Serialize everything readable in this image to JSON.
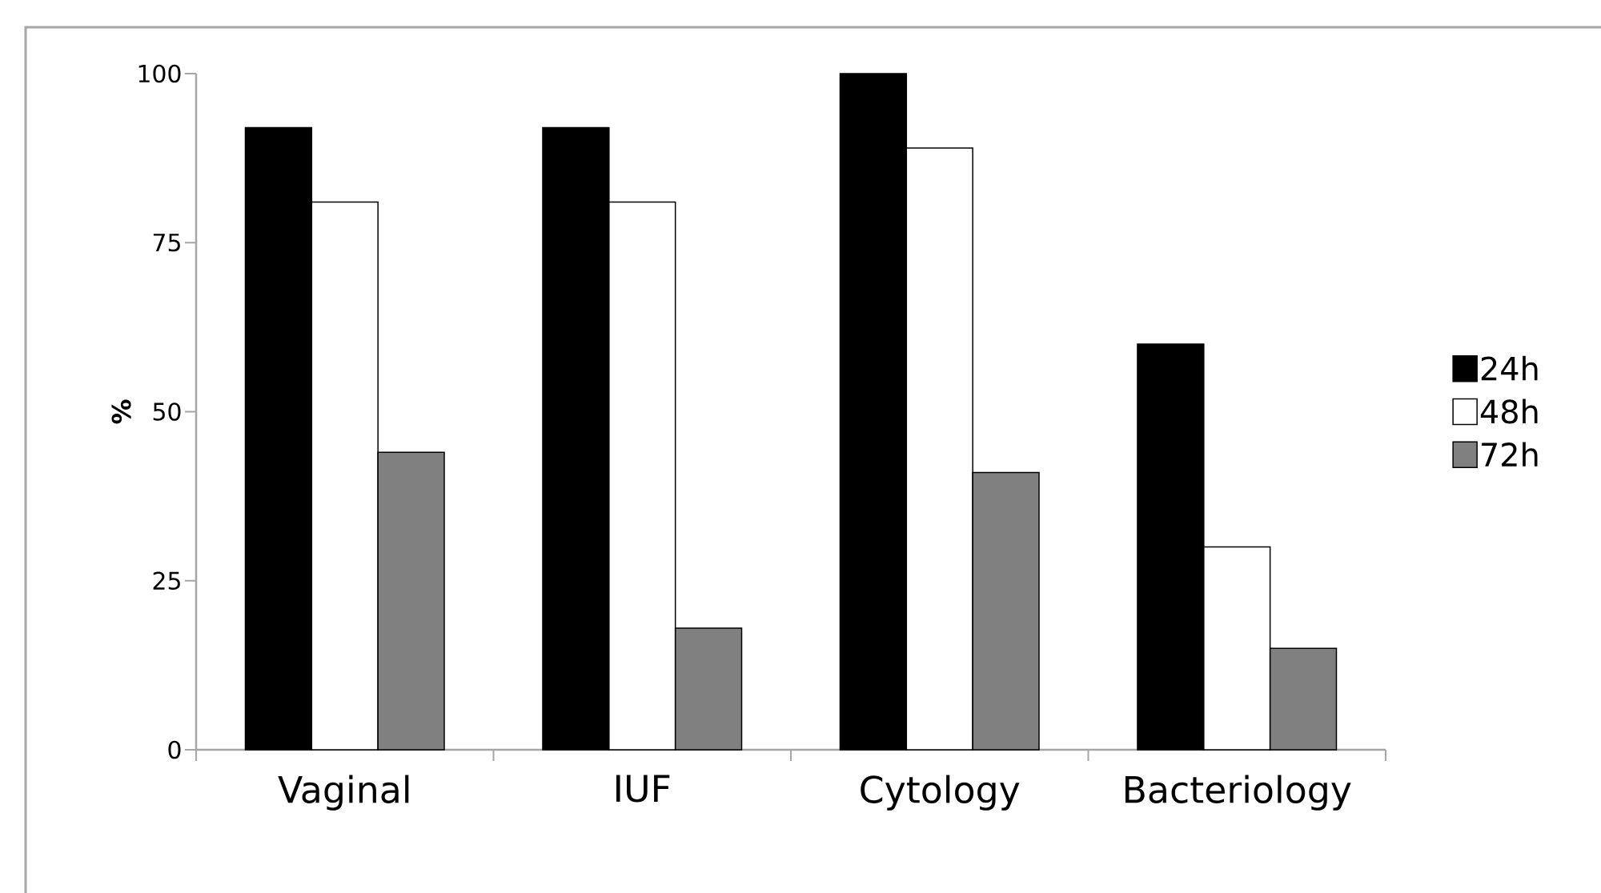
{
  "chart_data": {
    "type": "bar",
    "ylabel": "%",
    "categories": [
      "Vaginal",
      "IUF",
      "Cytology",
      "Bacteriology"
    ],
    "series": [
      {
        "name": "24h",
        "color": "#000000",
        "values": [
          92,
          92,
          100,
          60
        ]
      },
      {
        "name": "48h",
        "color": "#ffffff",
        "values": [
          81,
          81,
          89,
          30
        ]
      },
      {
        "name": "72h",
        "color": "#808080",
        "values": [
          44,
          18,
          41,
          15
        ]
      }
    ],
    "ylim": [
      0,
      100
    ],
    "yticks": [
      0,
      25,
      50,
      75,
      100
    ],
    "grid": false,
    "legend": "right"
  }
}
